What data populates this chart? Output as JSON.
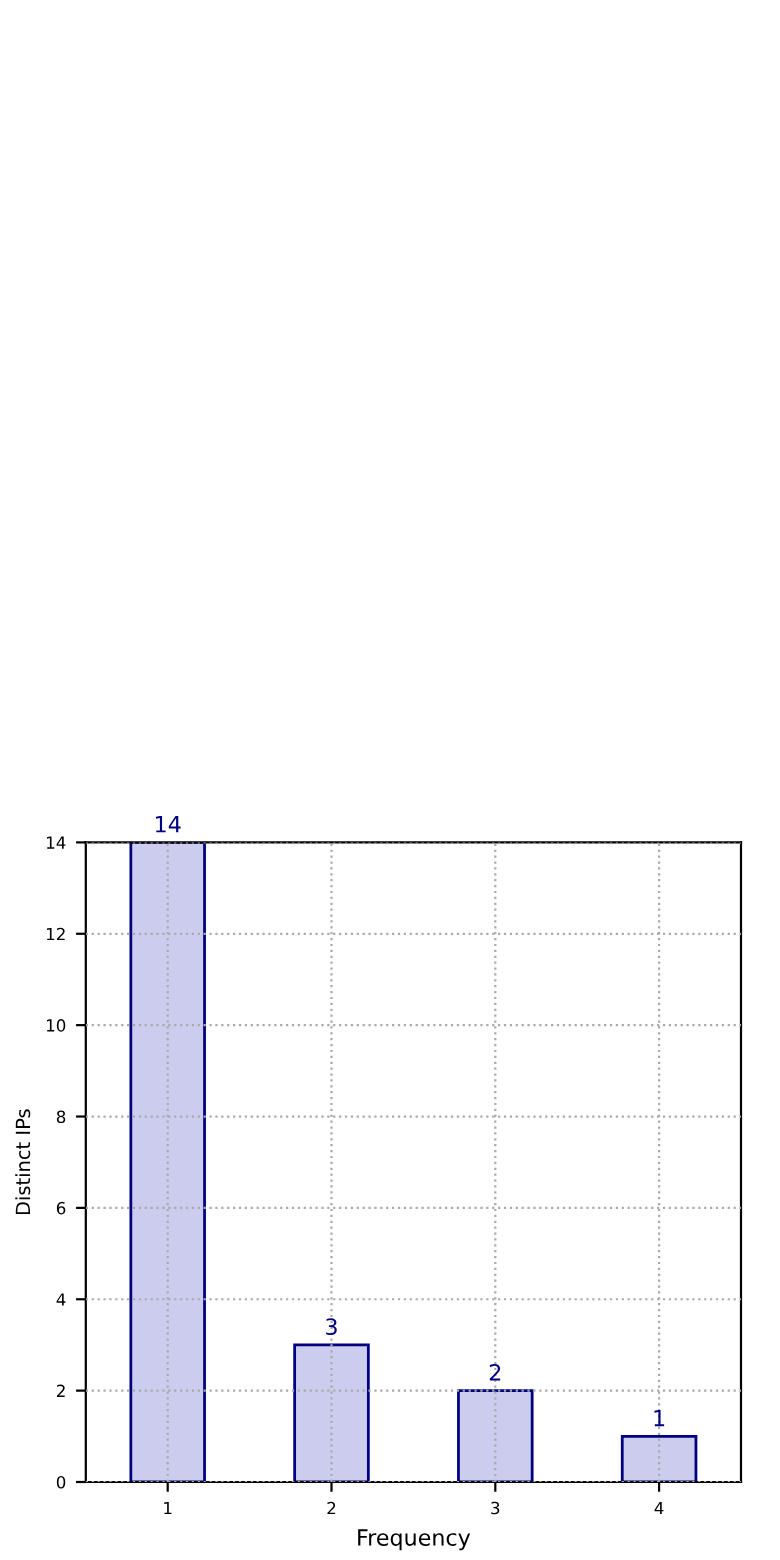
{
  "chart_data": {
    "type": "bar",
    "xlabel": "Frequency",
    "ylabel": "Distinct IPs",
    "categories": [
      "1",
      "2",
      "3",
      "4"
    ],
    "series": [
      {
        "color": "#ccccee",
        "values": [
          14,
          3,
          2,
          1
        ]
      }
    ],
    "data_labels": true,
    "ylim": [
      0,
      14
    ],
    "yticks": [
      0,
      2,
      4,
      6,
      8,
      10,
      12,
      14
    ],
    "grid": true
  }
}
